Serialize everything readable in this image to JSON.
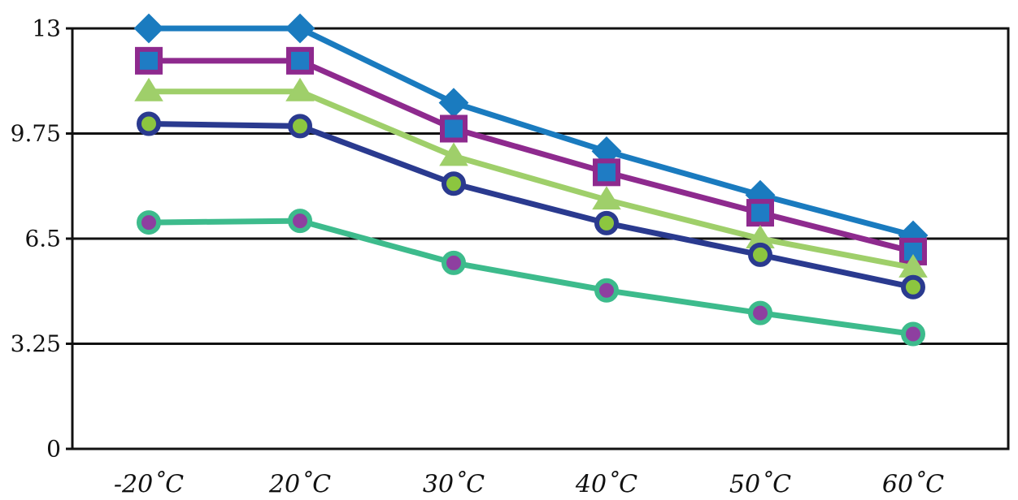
{
  "chart_data": {
    "type": "line",
    "title": "",
    "xlabel": "",
    "ylabel": "",
    "categories": [
      "-20˚C",
      "20˚C",
      "30˚C",
      "40˚C",
      "50˚C",
      "60˚C"
    ],
    "y_ticks": [
      "0",
      "3.25",
      "6.5",
      "9.75",
      "13"
    ],
    "ylim": [
      0,
      13
    ],
    "grid": "horizontal",
    "legend": "none",
    "series": [
      {
        "values": [
          13.0,
          13.0,
          10.7,
          9.2,
          7.85,
          6.6
        ],
        "color": "#1a7bbf",
        "marker": "diamond",
        "marker_fill": "#1a7bbf",
        "marker_edge": "#1a7bbf"
      },
      {
        "values": [
          12.0,
          12.0,
          9.9,
          8.55,
          7.3,
          6.1
        ],
        "color": "#8e2a8e",
        "marker": "square",
        "marker_fill": "#1f7cc4",
        "marker_edge": "#8e2a8e"
      },
      {
        "values": [
          11.05,
          11.05,
          9.05,
          7.7,
          6.5,
          5.6
        ],
        "color": "#9fcf6a",
        "marker": "triangle",
        "marker_fill": "#9fcf6a",
        "marker_edge": "#9fcf6a"
      },
      {
        "values": [
          10.05,
          9.98,
          8.2,
          6.98,
          6.0,
          5.0
        ],
        "color": "#2a3a8f",
        "marker": "circle",
        "marker_fill": "#8cc63f",
        "marker_edge": "#2a3a8f"
      },
      {
        "values": [
          7.0,
          7.05,
          5.75,
          4.9,
          4.2,
          3.55
        ],
        "color": "#3dbb8c",
        "marker": "circle",
        "marker_fill": "#8e3fa0",
        "marker_edge": "#3dbb8c"
      }
    ]
  }
}
